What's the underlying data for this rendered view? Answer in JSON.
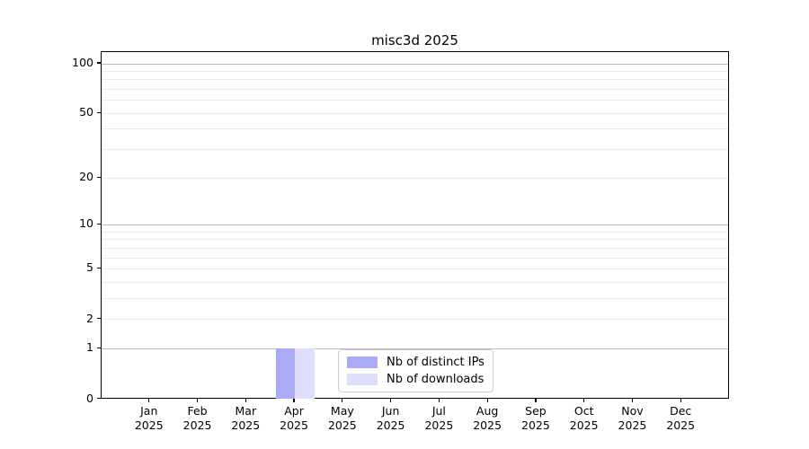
{
  "chart_data": {
    "type": "bar",
    "title": "misc3d 2025",
    "categories": [
      "Jan",
      "Feb",
      "Mar",
      "Apr",
      "May",
      "Jun",
      "Jul",
      "Aug",
      "Sep",
      "Oct",
      "Nov",
      "Dec"
    ],
    "x_tick_year": "2025",
    "series": [
      {
        "name": "Nb of distinct IPs",
        "color": "#aaaaf5",
        "values": [
          0,
          0,
          0,
          1,
          0,
          0,
          0,
          0,
          0,
          0,
          0,
          0
        ]
      },
      {
        "name": "Nb of downloads",
        "color": "#dedefa",
        "values": [
          0,
          0,
          0,
          1,
          0,
          0,
          0,
          0,
          0,
          0,
          0,
          0
        ]
      }
    ],
    "xlabel": "",
    "ylabel": "",
    "y_axis": {
      "scale": "log1p",
      "ylim": [
        0,
        117
      ],
      "tick_values": [
        0,
        1,
        2,
        5,
        10,
        20,
        50,
        100
      ],
      "major_grid_values": [
        1,
        10,
        100
      ],
      "minor_grid_values": [
        2,
        3,
        4,
        5,
        6,
        7,
        8,
        9,
        20,
        30,
        40,
        50,
        60,
        70,
        80,
        90
      ]
    },
    "legend": {
      "position": "lower center",
      "entries": [
        "Nb of distinct IPs",
        "Nb of downloads"
      ]
    },
    "colors": {
      "major_grid": "#b8b8b8",
      "minor_grid": "#ebebeb",
      "spine": "#000000",
      "background": "#ffffff"
    }
  }
}
